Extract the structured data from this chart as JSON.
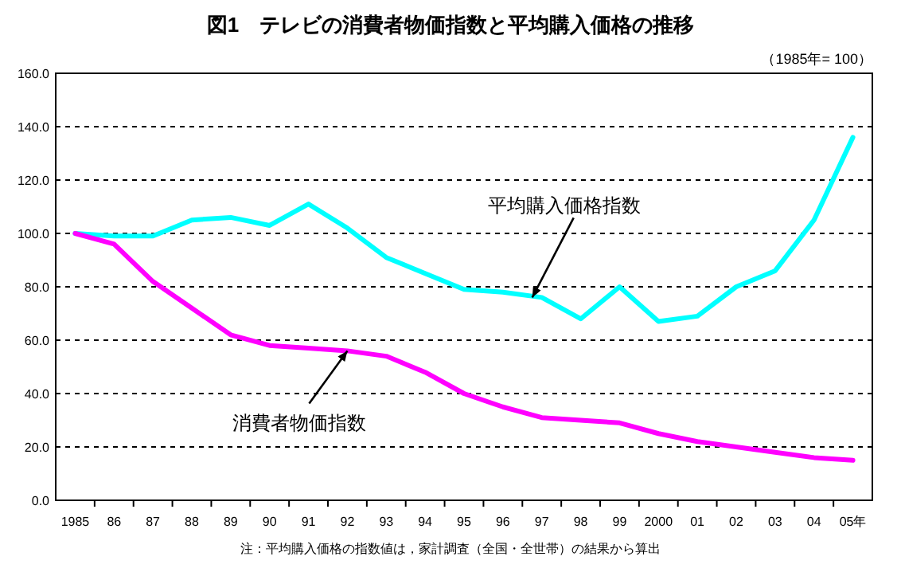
{
  "chart_data": {
    "type": "line",
    "title": "図1　テレビの消費者物価指数と平均購入価格の推移",
    "subtitle": "（1985年= 100）",
    "annotations": [
      "注：平均購入価格の指数値は，家計調査（全国・全世帯）の結果から算出",
      {
        "text": "平均購入価格指数",
        "x": "97",
        "y": 76
      },
      {
        "text": "消費者物価指数",
        "x": "92",
        "y": 56
      }
    ],
    "categories": [
      "1985",
      "86",
      "87",
      "88",
      "89",
      "90",
      "91",
      "92",
      "93",
      "94",
      "95",
      "96",
      "97",
      "98",
      "99",
      "2000",
      "01",
      "02",
      "03",
      "04",
      "05年"
    ],
    "series": [
      {
        "color": "#00ffff",
        "values": [
          100,
          99,
          99,
          105,
          106,
          103,
          111,
          102,
          91,
          85,
          79,
          78,
          76,
          68,
          80,
          67,
          69,
          80,
          86,
          105,
          136
        ]
      },
      {
        "color": "#ff00ff",
        "values": [
          100,
          96,
          82,
          72,
          62,
          58,
          57,
          56,
          54,
          48,
          40,
          35,
          31,
          30,
          29,
          25,
          22,
          20,
          18,
          16,
          15
        ]
      }
    ],
    "ylim": [
      0,
      160
    ],
    "yticks": [
      {
        "value": 0,
        "label": "0.0"
      },
      {
        "value": 20,
        "label": "20.0"
      },
      {
        "value": 40,
        "label": "40.0"
      },
      {
        "value": 60,
        "label": "60.0"
      },
      {
        "value": 80,
        "label": "80.0"
      },
      {
        "value": 100,
        "label": "100.0"
      },
      {
        "value": 120,
        "label": "120.0"
      },
      {
        "value": 140,
        "label": "140.0"
      },
      {
        "value": 160,
        "label": "160.0"
      }
    ],
    "grid": "y",
    "marker": "none",
    "line_style": "solid"
  }
}
